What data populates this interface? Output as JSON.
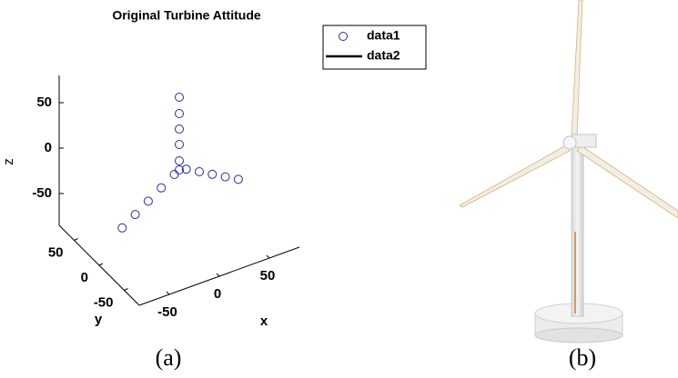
{
  "chart_data": {
    "type": "scatter3d",
    "title": "Original Turbine Attitude",
    "xlabel": "x",
    "ylabel": "y",
    "zlabel": "z",
    "xlim": [
      -80,
      80
    ],
    "ylim": [
      -80,
      80
    ],
    "zlim": [
      -85,
      80
    ],
    "xticks": [
      -50,
      0,
      50
    ],
    "yticks": [
      -50,
      0,
      50
    ],
    "zticks": [
      -50,
      0,
      50
    ],
    "series": [
      {
        "name": "data1",
        "color": "#2b2b9e",
        "marker": "circle",
        "x": [
          0,
          0,
          0,
          0,
          0,
          0,
          7,
          20,
          33,
          46,
          59,
          -3,
          -11,
          -19,
          -27,
          -35
        ],
        "y": [
          0,
          0,
          0,
          0,
          0,
          0,
          0,
          0,
          0,
          0,
          0,
          4,
          14,
          24,
          34,
          44
        ],
        "z": [
          68,
          50,
          33,
          16,
          -2,
          -12,
          -14,
          -22,
          -30,
          -38,
          -46,
          -18,
          -35,
          -52,
          -69,
          -86
        ]
      },
      {
        "name": "data2",
        "color": "#000000",
        "marker": "line",
        "x": [],
        "y": [],
        "z": []
      }
    ]
  },
  "captions": [
    "(a)",
    "(b)"
  ]
}
